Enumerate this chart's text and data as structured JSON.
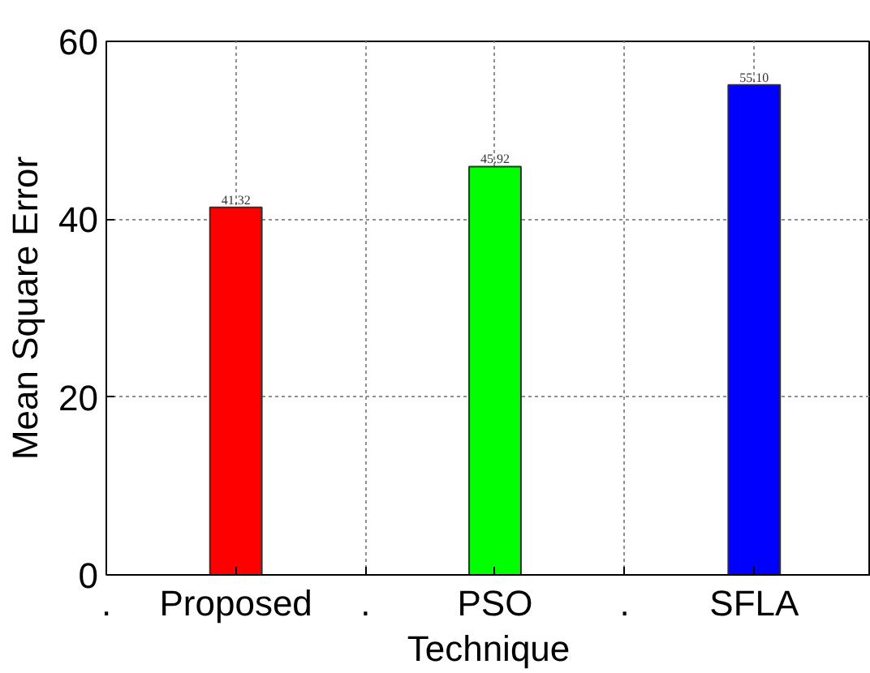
{
  "chart_data": {
    "type": "bar",
    "xlabel": "Technique",
    "ylabel": "Mean Square Error",
    "categories": [
      ".",
      "Proposed",
      ".",
      "PSO",
      ".",
      "SFLA"
    ],
    "values": [
      null,
      41.32,
      null,
      45.92,
      null,
      55.1
    ],
    "value_labels": [
      null,
      "41.32",
      null,
      "45.92",
      null,
      "55.10"
    ],
    "colors": [
      "#ffffff",
      "#ff0000",
      "#ffffff",
      "#00ff00",
      "#ffffff",
      "#0000ff"
    ],
    "ylim": [
      0,
      60
    ],
    "yticks": [
      0,
      20,
      40,
      60
    ],
    "grid": true
  }
}
